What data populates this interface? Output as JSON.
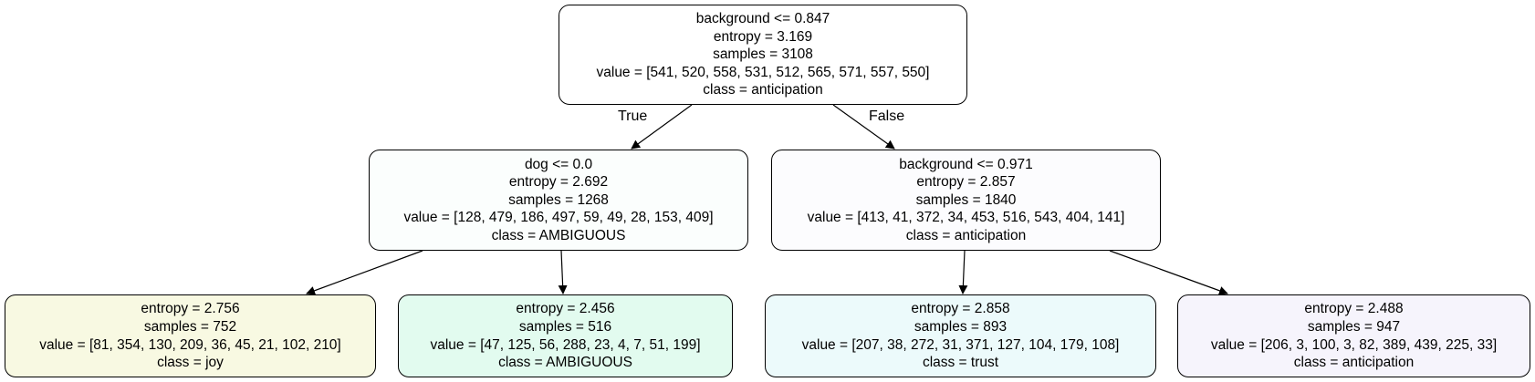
{
  "tree": {
    "root": {
      "split": "background <= 0.847",
      "entropy": "entropy = 3.169",
      "samples": "samples = 3108",
      "value": "value = [541, 520, 558, 531, 512, 565, 571, 557, 550]",
      "class": "class = anticipation",
      "fill": "#ffffff"
    },
    "left": {
      "split": "dog <= 0.0",
      "entropy": "entropy = 2.692",
      "samples": "samples = 1268",
      "value": "value = [128, 479, 186, 497, 59, 49, 28, 153, 409]",
      "class": "class = AMBIGUOUS",
      "fill": "#fbfefd"
    },
    "right": {
      "split": "background <= 0.971",
      "entropy": "entropy = 2.857",
      "samples": "samples = 1840",
      "value": "value = [413, 41, 372, 34, 453, 516, 543, 404, 141]",
      "class": "class = anticipation",
      "fill": "#fcfcfe"
    },
    "leaf1": {
      "entropy": "entropy = 2.756",
      "samples": "samples = 752",
      "value": "value = [81, 354, 130, 209, 36, 45, 21, 102, 210]",
      "class": "class = joy",
      "fill": "#f8f9e2"
    },
    "leaf2": {
      "entropy": "entropy = 2.456",
      "samples": "samples = 516",
      "value": "value = [47, 125, 56, 288, 23, 4, 7, 51, 199]",
      "class": "class = AMBIGUOUS",
      "fill": "#e2fbef"
    },
    "leaf3": {
      "entropy": "entropy = 2.858",
      "samples": "samples = 893",
      "value": "value = [207, 38, 272, 31, 371, 127, 104, 179, 108]",
      "class": "class = trust",
      "fill": "#ecfafb"
    },
    "leaf4": {
      "entropy": "entropy = 2.488",
      "samples": "samples = 947",
      "value": "value = [206, 3, 100, 3, 82, 389, 439, 225, 33]",
      "class": "class = anticipation",
      "fill": "#f6f4fc"
    }
  },
  "edge_labels": {
    "true_label": "True",
    "false_label": "False"
  }
}
